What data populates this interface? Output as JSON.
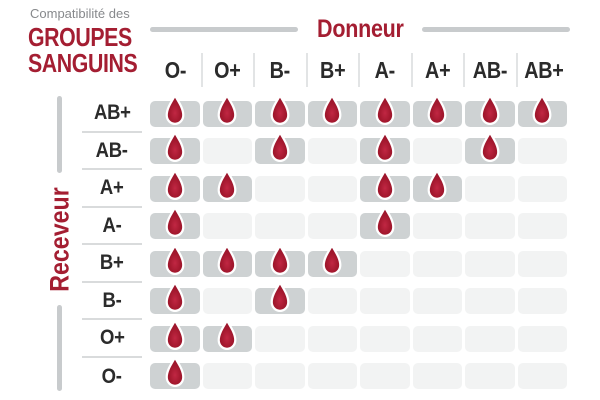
{
  "title": {
    "eyebrow": "Compatibilité des",
    "line1": "GROUPES",
    "line2": "SANGUINS"
  },
  "axis": {
    "donor": "Donneur",
    "recipient": "Receveur"
  },
  "icons": {
    "compatible": "blood-drop-icon"
  },
  "colors": {
    "red": "#A41E32",
    "drop_core": "#C12743",
    "drop_mid": "#A3182E",
    "drop_edge": "#96142A",
    "drop_stroke": "#FFFFFF",
    "cell_filled": "#CED2D3",
    "cell_empty": "#F2F3F3",
    "ink": "#2B2B2B",
    "muted": "#87898C",
    "bracket": "#C8CBCD",
    "sep_v": "#E2E4E5",
    "sep_h": "#D9DBDC",
    "bg": "#FFFFFF"
  },
  "chart_data": {
    "type": "table",
    "title": "Compatibilité des GROUPES SANGUINS",
    "x_axis_label": "Donneur",
    "y_axis_label": "Receveur",
    "columns": [
      "O-",
      "O+",
      "B-",
      "B+",
      "A-",
      "A+",
      "AB-",
      "AB+"
    ],
    "rows": [
      "AB+",
      "AB-",
      "A+",
      "A-",
      "B+",
      "B-",
      "O+",
      "O-"
    ],
    "matrix": [
      [
        1,
        1,
        1,
        1,
        1,
        1,
        1,
        1
      ],
      [
        1,
        0,
        1,
        0,
        1,
        0,
        1,
        0
      ],
      [
        1,
        1,
        0,
        0,
        1,
        1,
        0,
        0
      ],
      [
        1,
        0,
        0,
        0,
        1,
        0,
        0,
        0
      ],
      [
        1,
        1,
        1,
        1,
        0,
        0,
        0,
        0
      ],
      [
        1,
        0,
        1,
        0,
        0,
        0,
        0,
        0
      ],
      [
        1,
        1,
        0,
        0,
        0,
        0,
        0,
        0
      ],
      [
        1,
        0,
        0,
        0,
        0,
        0,
        0,
        0
      ]
    ],
    "cell_meaning": "1 = compatible (goutte de sang affichée), 0 = incompatible (case vide)"
  }
}
